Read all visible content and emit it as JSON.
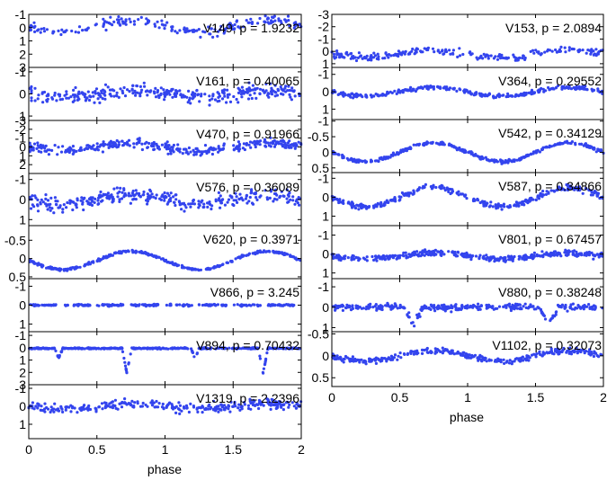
{
  "chart_data": {
    "type": "scatter",
    "x_axis": {
      "label": "phase",
      "range": [
        0,
        2
      ],
      "ticks": [
        "0",
        "0.5",
        "1",
        "1.5",
        "2"
      ]
    },
    "columns": [
      {
        "name": "left",
        "panels": [
          {
            "star": "V149",
            "period": "1.9232",
            "label": "V149, p = 1.9232",
            "ylim": [
              3,
              -1
            ],
            "yticks": [
              "-1",
              "0",
              "1",
              "2",
              "3"
            ],
            "center": -0.1,
            "shape": "bumps",
            "amp": 0.45,
            "scatter": 0.35,
            "n": 200
          },
          {
            "star": "V161",
            "period": "0.40065",
            "label": "V161, p = 0.40065",
            "ylim": [
              1.2,
              -1.2
            ],
            "yticks": [
              "-1",
              "0",
              "1"
            ],
            "center": 0.0,
            "shape": "sine",
            "amp": 0.15,
            "scatter": 0.3,
            "n": 320
          },
          {
            "star": "V470",
            "period": "0.91966",
            "label": "V470, p = 0.91966",
            "ylim": [
              3,
              -3
            ],
            "yticks": [
              "-3",
              "-2",
              "-1",
              "0",
              "1",
              "2"
            ],
            "center": 0.0,
            "shape": "sine",
            "amp": 0.4,
            "scatter": 0.5,
            "n": 320
          },
          {
            "star": "V576",
            "period": "0.36089",
            "label": "V576, p = 0.36089",
            "ylim": [
              1.3,
              -1.3
            ],
            "yticks": [
              "-1",
              "0",
              "1"
            ],
            "center": 0.0,
            "shape": "sine",
            "amp": 0.25,
            "scatter": 0.35,
            "n": 320
          },
          {
            "star": "V620",
            "period": "0.3971",
            "label": "V620, p = 0.3971",
            "ylim": [
              0.55,
              -0.9
            ],
            "yticks": [
              "-0.5",
              "0",
              "0.5"
            ],
            "center": 0.05,
            "shape": "rrc",
            "amp": 0.25,
            "scatter": 0.03,
            "n": 360
          },
          {
            "star": "V866",
            "period": "3.245",
            "label": "V866, p = 3.245",
            "ylim": [
              1.4,
              -1.4
            ],
            "yticks": [
              "-1",
              "0",
              "1"
            ],
            "center": 0.0,
            "shape": "flat",
            "amp": 0.0,
            "scatter": 0.05,
            "n": 320
          },
          {
            "star": "V894",
            "period": "0.70432",
            "label": "V894, p = 0.70432",
            "ylim": [
              3,
              -1.3
            ],
            "yticks": [
              "-1",
              "0",
              "1",
              "2",
              "3"
            ],
            "center": 0.05,
            "shape": "eclipse",
            "amp": 2.0,
            "scatter": 0.05,
            "n": 420
          },
          {
            "star": "V1319",
            "period": "2.2396",
            "label": "V1319, p = 2.2396",
            "ylim": [
              1.8,
              -1.2
            ],
            "yticks": [
              "-1",
              "0",
              "1"
            ],
            "center": 0.0,
            "shape": "sine",
            "amp": 0.15,
            "scatter": 0.25,
            "n": 300
          }
        ]
      },
      {
        "name": "right",
        "panels": [
          {
            "star": "V153",
            "period": "2.0894",
            "label": "V153, p = 2.0894",
            "ylim": [
              1.3,
              -3
            ],
            "yticks": [
              "-3",
              "-2",
              "-1",
              "0",
              "1"
            ],
            "center": 0.2,
            "shape": "sine",
            "amp": 0.3,
            "scatter": 0.3,
            "n": 220
          },
          {
            "star": "V364",
            "period": "0.29552",
            "label": "V364, p = 0.29552",
            "ylim": [
              1.6,
              -1.4
            ],
            "yticks": [
              "-1",
              "0",
              "1"
            ],
            "center": 0.0,
            "shape": "sine",
            "amp": 0.25,
            "scatter": 0.1,
            "n": 300
          },
          {
            "star": "V542",
            "period": "0.34129",
            "label": "V542, p = 0.34129",
            "ylim": [
              0.65,
              -1.05
            ],
            "yticks": [
              "-1",
              "-0.5",
              "0",
              "0.5"
            ],
            "center": 0.0,
            "shape": "sine",
            "amp": 0.3,
            "scatter": 0.05,
            "n": 330
          },
          {
            "star": "V587",
            "period": "0.34866",
            "label": "V587, p = 0.34866",
            "ylim": [
              1.5,
              -1.3
            ],
            "yticks": [
              "-1",
              "0",
              "1"
            ],
            "center": 0.0,
            "shape": "sine",
            "amp": 0.5,
            "scatter": 0.15,
            "n": 320
          },
          {
            "star": "V801",
            "period": "0.67457",
            "label": "V801, p = 0.67457",
            "ylim": [
              1.3,
              -1.5
            ],
            "yticks": [
              "-1",
              "0",
              "1"
            ],
            "center": 0.1,
            "shape": "sine",
            "amp": 0.15,
            "scatter": 0.15,
            "n": 380
          },
          {
            "star": "V880",
            "period": "0.38248",
            "label": "V880, p = 0.38248",
            "ylim": [
              1.2,
              -1.4
            ],
            "yticks": [
              "-1",
              "0",
              "1"
            ],
            "center": 0.0,
            "shape": "dip",
            "amp": 0.8,
            "scatter": 0.15,
            "n": 320
          },
          {
            "star": "V1102",
            "period": "0.32073",
            "label": "V1102, p = 0.32073",
            "ylim": [
              0.7,
              -0.55
            ],
            "yticks": [
              "-0.5",
              "0",
              "0.5"
            ],
            "center": 0.0,
            "shape": "sine",
            "amp": 0.12,
            "scatter": 0.06,
            "n": 330
          }
        ]
      }
    ]
  }
}
